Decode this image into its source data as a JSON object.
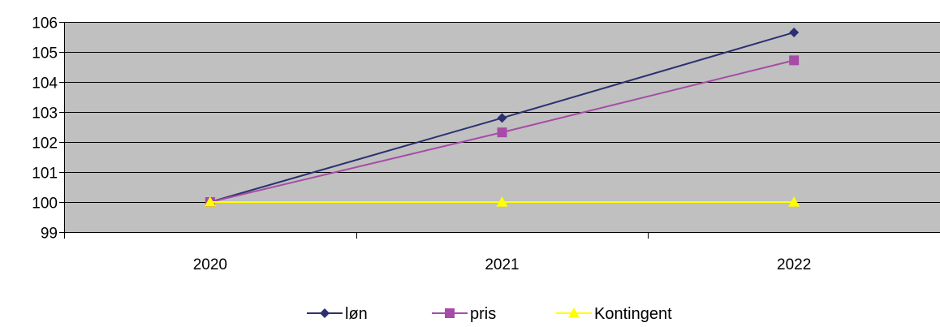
{
  "chart_data": {
    "type": "line",
    "categories": [
      "2020",
      "2021",
      "2022"
    ],
    "series": [
      {
        "name": "løn",
        "values": [
          100,
          102.8,
          105.65
        ],
        "color": "#2b3170",
        "marker": "diamond"
      },
      {
        "name": "pris",
        "values": [
          100,
          102.32,
          104.72
        ],
        "color": "#a64ca6",
        "marker": "square"
      },
      {
        "name": "Kontingent",
        "values": [
          100,
          100,
          100
        ],
        "color": "#ffff00",
        "marker": "triangle"
      }
    ],
    "ylim": [
      99,
      106
    ],
    "yticks": [
      "99",
      "100",
      "101",
      "102",
      "103",
      "104",
      "105",
      "106"
    ],
    "grid": true,
    "plot_background": "#c0c0c0",
    "legend_position": "bottom"
  }
}
